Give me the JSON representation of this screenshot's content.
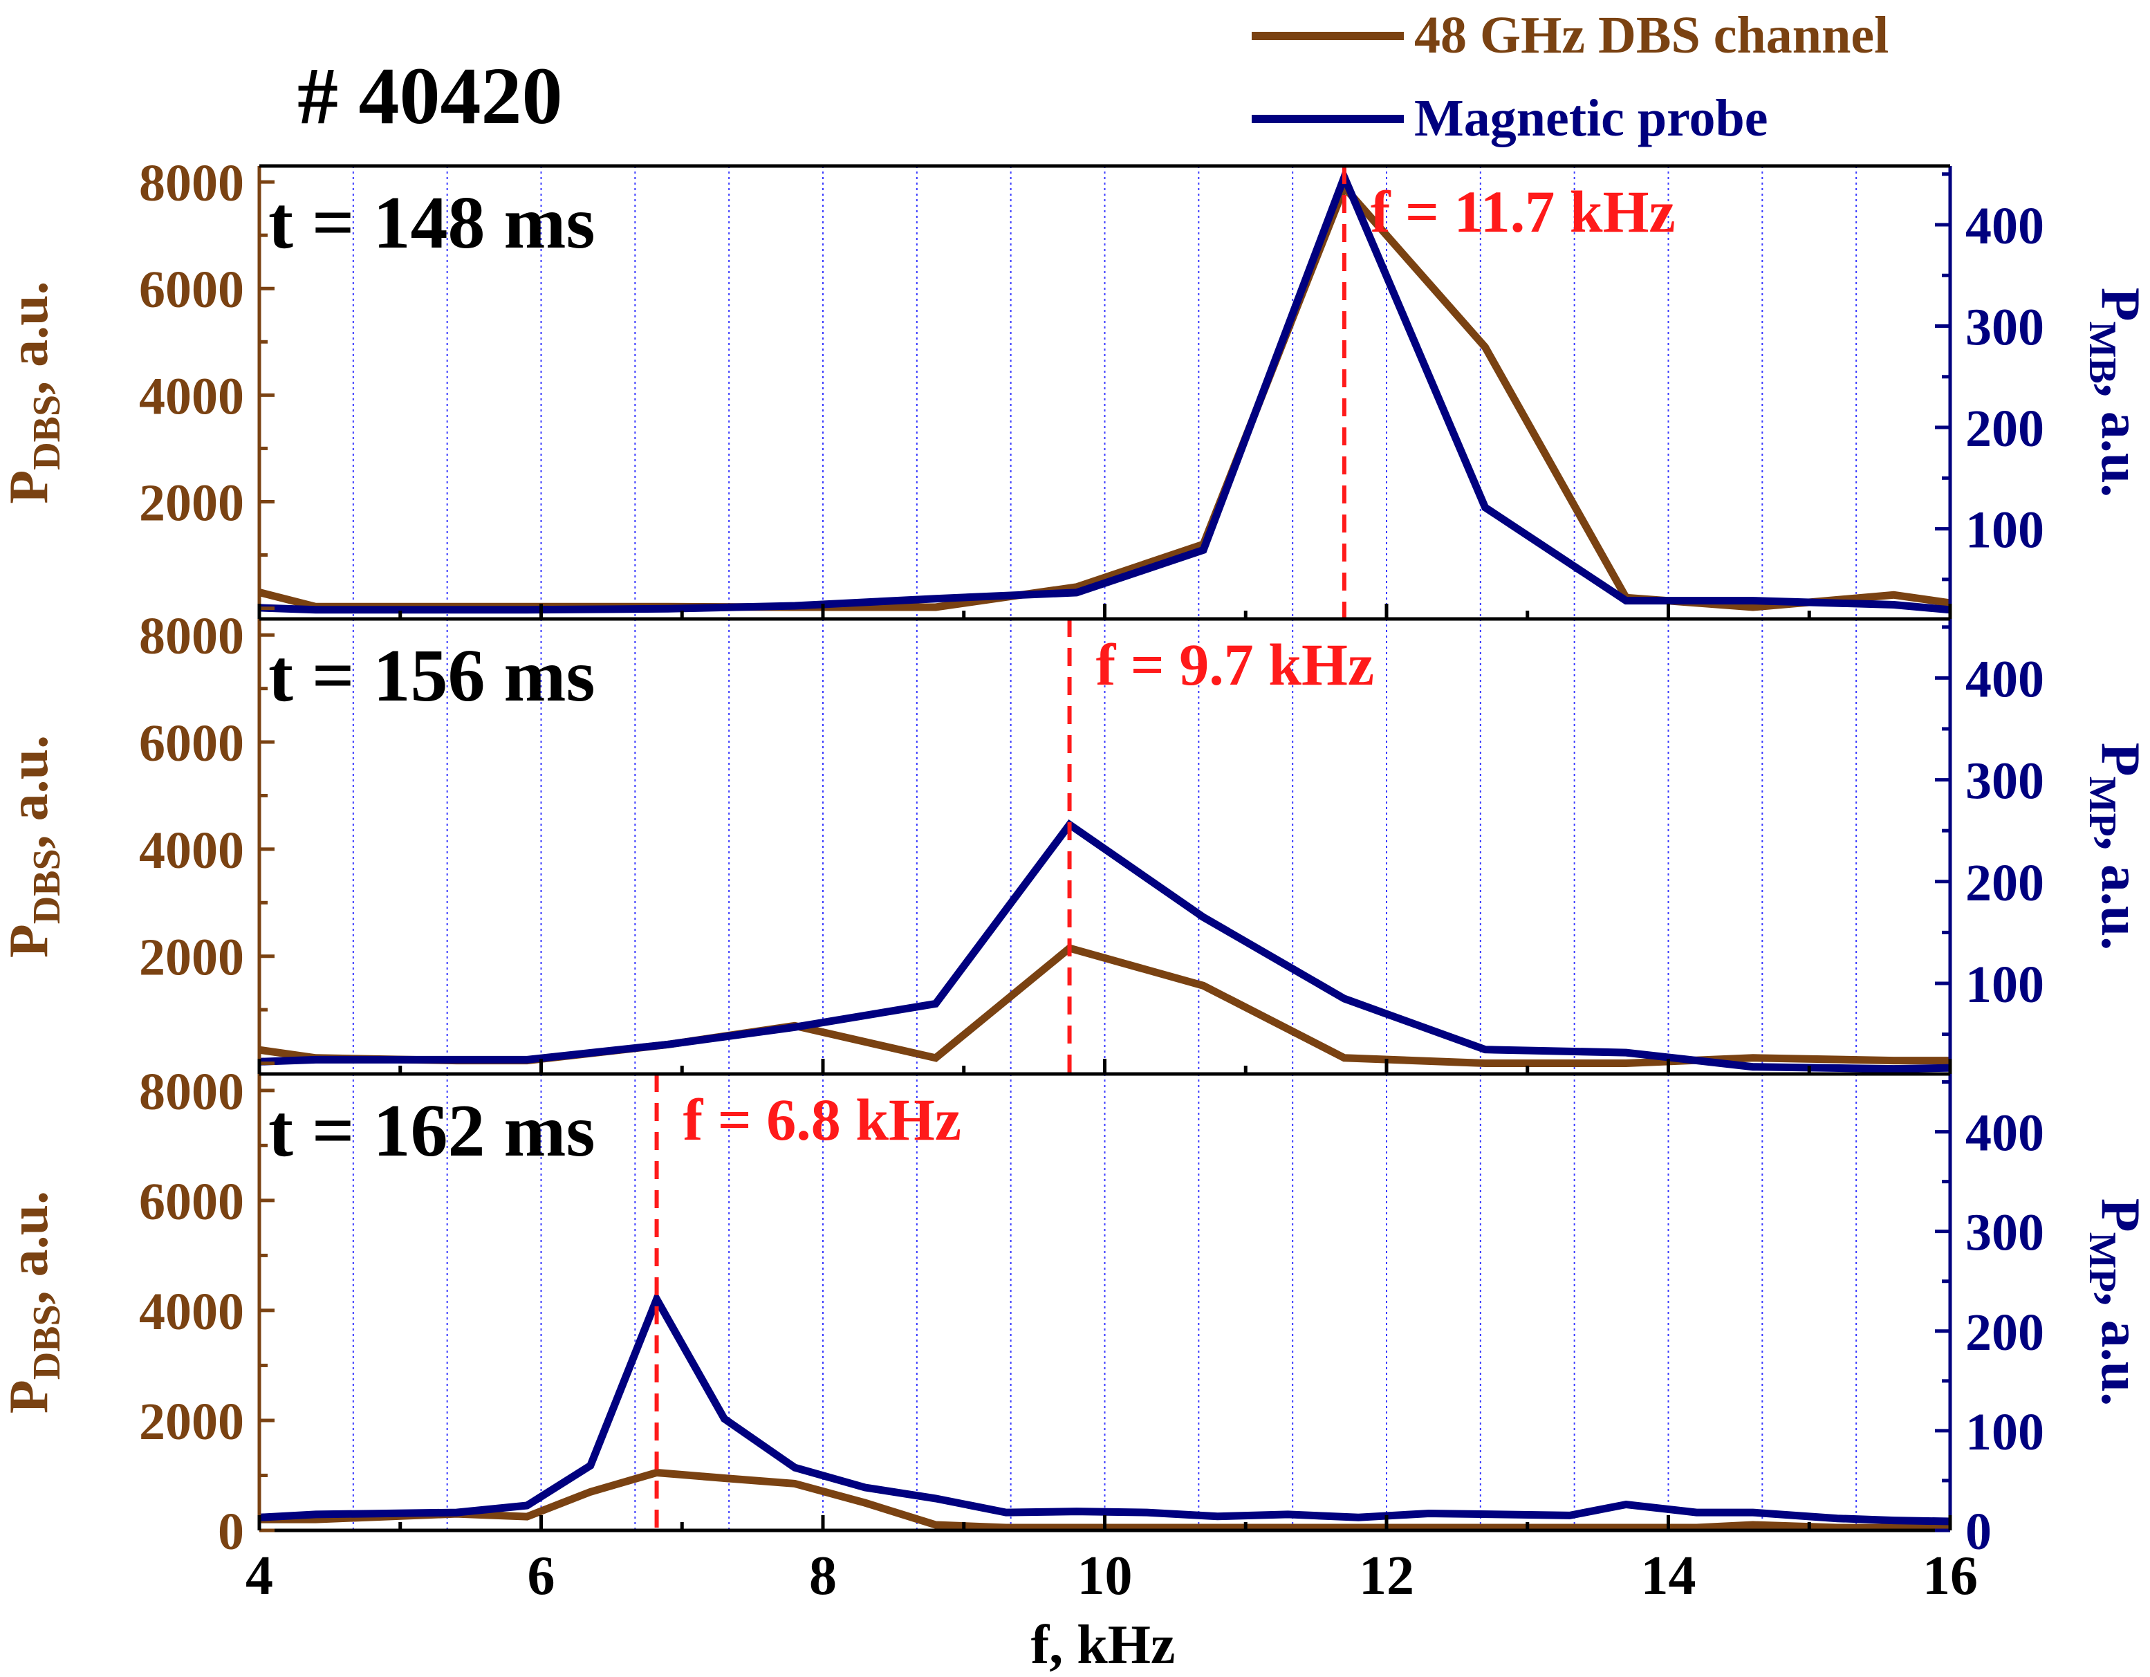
{
  "figure": {
    "shot_label": "# 40420",
    "xlabel": "f, kHz",
    "left_ylabel_base": "P",
    "left_ylabel_sub": "DBS",
    "left_ylabel_suffix": ", a.u.",
    "right_ylabel_base": "P",
    "right_ylabel_suffix": ", a.u.",
    "x_ticks": [
      "4",
      "6",
      "8",
      "10",
      "12",
      "14",
      "16"
    ],
    "left_ticks": [
      "2000",
      "4000",
      "6000",
      "8000"
    ],
    "left_ticks_bottom": [
      "0",
      "2000",
      "4000",
      "6000",
      "8000"
    ],
    "right_ticks": [
      "100",
      "200",
      "300",
      "400"
    ],
    "right_ticks_bottom": [
      "0",
      "100",
      "200",
      "300",
      "400"
    ]
  },
  "legend": {
    "dbs": "48 GHz DBS channel",
    "mp": "Magnetic probe"
  },
  "colors": {
    "dbs": "#7a4212",
    "mp": "#00007f",
    "marker": "#ff1a1a",
    "grid": "#3a3aff",
    "text": "#000000"
  },
  "chart_data": [
    {
      "type": "line",
      "title": "t = 148 ms",
      "annotation": "f = 11.7 kHz",
      "marker_x": 11.7,
      "right_ylabel_sub": "MB",
      "xlim": [
        4,
        16
      ],
      "ylim_left": [
        -200,
        8300
      ],
      "ylim_right": [
        11,
        458
      ],
      "x": [
        4.0,
        4.4,
        5.4,
        5.9,
        6.9,
        7.8,
        8.8,
        9.8,
        10.7,
        11.7,
        12.7,
        13.7,
        14.6,
        15.6,
        16.0
      ],
      "series": [
        {
          "name": "48 GHz DBS channel",
          "axis": "left",
          "values": [
            300,
            30,
            30,
            30,
            30,
            20,
            20,
            400,
            1200,
            7900,
            4900,
            200,
            20,
            250,
            100
          ]
        },
        {
          "name": "Magnetic probe",
          "axis": "right",
          "values": [
            22,
            20,
            20,
            20,
            21,
            24,
            31,
            37,
            79,
            447,
            121,
            29,
            29,
            25,
            20
          ]
        }
      ]
    },
    {
      "type": "line",
      "title": "t = 156 ms",
      "annotation": "f = 9.7 kHz",
      "marker_x": 9.75,
      "right_ylabel_sub": "MP",
      "xlim": [
        4,
        16
      ],
      "ylim_left": [
        -200,
        8300
      ],
      "ylim_right": [
        11,
        458
      ],
      "x": [
        4.0,
        4.4,
        5.4,
        5.9,
        6.9,
        7.8,
        8.8,
        9.75,
        10.7,
        11.7,
        12.7,
        13.7,
        14.6,
        15.6,
        16.0
      ],
      "series": [
        {
          "name": "48 GHz DBS channel",
          "axis": "left",
          "values": [
            250,
            100,
            50,
            50,
            350,
            700,
            100,
            2150,
            1450,
            100,
            0,
            0,
            100,
            50,
            50
          ]
        },
        {
          "name": "Magnetic probe",
          "axis": "right",
          "values": [
            23,
            25,
            25,
            25,
            40,
            57,
            80,
            256,
            165,
            85,
            35,
            32,
            18,
            16,
            17
          ]
        }
      ]
    },
    {
      "type": "line",
      "title": "t = 162 ms",
      "annotation": "f = 6.8 kHz",
      "marker_x": 6.82,
      "right_ylabel_sub": "MP",
      "xlim": [
        4,
        16
      ],
      "ylim_left": [
        0,
        8300
      ],
      "ylim_right": [
        0,
        458
      ],
      "x": [
        4.0,
        4.4,
        5.4,
        5.9,
        6.35,
        6.82,
        7.3,
        7.8,
        8.3,
        8.8,
        9.3,
        9.8,
        10.3,
        10.8,
        11.3,
        11.8,
        12.3,
        12.8,
        13.3,
        13.7,
        14.2,
        14.6,
        15.2,
        15.6,
        16.0
      ],
      "series": [
        {
          "name": "48 GHz DBS channel",
          "axis": "left",
          "values": [
            200,
            200,
            300,
            250,
            700,
            1050,
            950,
            850,
            500,
            100,
            50,
            50,
            50,
            50,
            50,
            50,
            50,
            50,
            50,
            50,
            50,
            100,
            50,
            50,
            50
          ]
        },
        {
          "name": "Magnetic probe",
          "axis": "right",
          "values": [
            13,
            16,
            18,
            25,
            65,
            232,
            112,
            63,
            43,
            32,
            18,
            19,
            18,
            14,
            16,
            13,
            17,
            16,
            15,
            26,
            18,
            18,
            12,
            10,
            9
          ]
        }
      ]
    }
  ]
}
